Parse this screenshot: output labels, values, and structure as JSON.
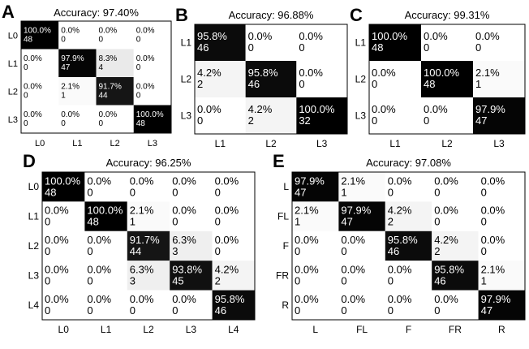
{
  "chart_data": [
    {
      "id": "A",
      "type": "heatmap",
      "panel_label": "A",
      "title": "Accuracy: 97.40%",
      "row_labels": [
        "L0",
        "L1",
        "L2",
        "L3"
      ],
      "col_labels": [
        "L0",
        "L1",
        "L2",
        "L3"
      ],
      "colormap": "white-to-black by row percentage",
      "cells": [
        [
          {
            "pct": "100.0%",
            "n": "48",
            "value": 100.0
          },
          {
            "pct": "0.0%",
            "n": "0",
            "value": 0.0
          },
          {
            "pct": "0.0%",
            "n": "0",
            "value": 0.0
          },
          {
            "pct": "0.0%",
            "n": "0",
            "value": 0.0
          }
        ],
        [
          {
            "pct": "0.0%",
            "n": "0",
            "value": 0.0
          },
          {
            "pct": "97.9%",
            "n": "47",
            "value": 97.9
          },
          {
            "pct": "8.3%",
            "n": "4",
            "value": 8.3
          },
          {
            "pct": "0.0%",
            "n": "0",
            "value": 0.0
          }
        ],
        [
          {
            "pct": "0.0%",
            "n": "0",
            "value": 0.0
          },
          {
            "pct": "2.1%",
            "n": "1",
            "value": 2.1
          },
          {
            "pct": "91.7%",
            "n": "44",
            "value": 91.7
          },
          {
            "pct": "0.0%",
            "n": "0",
            "value": 0.0
          }
        ],
        [
          {
            "pct": "0.0%",
            "n": "0",
            "value": 0.0
          },
          {
            "pct": "0.0%",
            "n": "0",
            "value": 0.0
          },
          {
            "pct": "0.0%",
            "n": "0",
            "value": 0.0
          },
          {
            "pct": "100.0%",
            "n": "48",
            "value": 100.0
          }
        ]
      ]
    },
    {
      "id": "B",
      "type": "heatmap",
      "panel_label": "B",
      "title": "Accuracy: 96.88%",
      "row_labels": [
        "L1",
        "L2",
        "L3"
      ],
      "col_labels": [
        "L1",
        "L2",
        "L3"
      ],
      "colormap": "white-to-black by row percentage",
      "cells": [
        [
          {
            "pct": "95.8%",
            "n": "46",
            "value": 95.8
          },
          {
            "pct": "0.0%",
            "n": "0",
            "value": 0.0
          },
          {
            "pct": "0.0%",
            "n": "0",
            "value": 0.0
          }
        ],
        [
          {
            "pct": "4.2%",
            "n": "2",
            "value": 4.2
          },
          {
            "pct": "95.8%",
            "n": "46",
            "value": 95.8
          },
          {
            "pct": "0.0%",
            "n": "0",
            "value": 0.0
          }
        ],
        [
          {
            "pct": "0.0%",
            "n": "0",
            "value": 0.0
          },
          {
            "pct": "4.2%",
            "n": "2",
            "value": 4.2
          },
          {
            "pct": "100.0%",
            "n": "32",
            "value": 100.0
          }
        ]
      ]
    },
    {
      "id": "C",
      "type": "heatmap",
      "panel_label": "C",
      "title": "Accuracy: 99.31%",
      "row_labels": [
        "L1",
        "L2",
        "L3"
      ],
      "col_labels": [
        "L1",
        "L2",
        "L3"
      ],
      "colormap": "white-to-black by row percentage",
      "cells": [
        [
          {
            "pct": "100.0%",
            "n": "48",
            "value": 100.0
          },
          {
            "pct": "0.0%",
            "n": "0",
            "value": 0.0
          },
          {
            "pct": "0.0%",
            "n": "0",
            "value": 0.0
          }
        ],
        [
          {
            "pct": "0.0%",
            "n": "0",
            "value": 0.0
          },
          {
            "pct": "100.0%",
            "n": "48",
            "value": 100.0
          },
          {
            "pct": "2.1%",
            "n": "1",
            "value": 2.1
          }
        ],
        [
          {
            "pct": "0.0%",
            "n": "0",
            "value": 0.0
          },
          {
            "pct": "0.0%",
            "n": "0",
            "value": 0.0
          },
          {
            "pct": "97.9%",
            "n": "47",
            "value": 97.9
          }
        ]
      ]
    },
    {
      "id": "D",
      "type": "heatmap",
      "panel_label": "D",
      "title": "Accuracy: 96.25%",
      "row_labels": [
        "L0",
        "L1",
        "L2",
        "L3",
        "L4"
      ],
      "col_labels": [
        "L0",
        "L1",
        "L2",
        "L3",
        "L4"
      ],
      "colormap": "white-to-black by row percentage",
      "cells": [
        [
          {
            "pct": "100.0%",
            "n": "48",
            "value": 100.0
          },
          {
            "pct": "0.0%",
            "n": "0",
            "value": 0.0
          },
          {
            "pct": "0.0%",
            "n": "0",
            "value": 0.0
          },
          {
            "pct": "0.0%",
            "n": "0",
            "value": 0.0
          },
          {
            "pct": "0.0%",
            "n": "0",
            "value": 0.0
          }
        ],
        [
          {
            "pct": "0.0%",
            "n": "0",
            "value": 0.0
          },
          {
            "pct": "100.0%",
            "n": "48",
            "value": 100.0
          },
          {
            "pct": "2.1%",
            "n": "1",
            "value": 2.1
          },
          {
            "pct": "0.0%",
            "n": "0",
            "value": 0.0
          },
          {
            "pct": "0.0%",
            "n": "0",
            "value": 0.0
          }
        ],
        [
          {
            "pct": "0.0%",
            "n": "0",
            "value": 0.0
          },
          {
            "pct": "0.0%",
            "n": "0",
            "value": 0.0
          },
          {
            "pct": "91.7%",
            "n": "44",
            "value": 91.7
          },
          {
            "pct": "6.3%",
            "n": "3",
            "value": 6.3
          },
          {
            "pct": "0.0%",
            "n": "0",
            "value": 0.0
          }
        ],
        [
          {
            "pct": "0.0%",
            "n": "0",
            "value": 0.0
          },
          {
            "pct": "0.0%",
            "n": "0",
            "value": 0.0
          },
          {
            "pct": "6.3%",
            "n": "3",
            "value": 6.3
          },
          {
            "pct": "93.8%",
            "n": "45",
            "value": 93.8
          },
          {
            "pct": "4.2%",
            "n": "2",
            "value": 4.2
          }
        ],
        [
          {
            "pct": "0.0%",
            "n": "0",
            "value": 0.0
          },
          {
            "pct": "0.0%",
            "n": "0",
            "value": 0.0
          },
          {
            "pct": "0.0%",
            "n": "0",
            "value": 0.0
          },
          {
            "pct": "0.0%",
            "n": "0",
            "value": 0.0
          },
          {
            "pct": "95.8%",
            "n": "46",
            "value": 95.8
          }
        ]
      ]
    },
    {
      "id": "E",
      "type": "heatmap",
      "panel_label": "E",
      "title": "Accuracy: 97.08%",
      "row_labels": [
        "L",
        "FL",
        "F",
        "FR",
        "R"
      ],
      "col_labels": [
        "L",
        "FL",
        "F",
        "FR",
        "R"
      ],
      "colormap": "white-to-black by row percentage",
      "cells": [
        [
          {
            "pct": "97.9%",
            "n": "47",
            "value": 97.9
          },
          {
            "pct": "2.1%",
            "n": "1",
            "value": 2.1
          },
          {
            "pct": "0.0%",
            "n": "0",
            "value": 0.0
          },
          {
            "pct": "0.0%",
            "n": "0",
            "value": 0.0
          },
          {
            "pct": "0.0%",
            "n": "0",
            "value": 0.0
          }
        ],
        [
          {
            "pct": "2.1%",
            "n": "1",
            "value": 2.1
          },
          {
            "pct": "97.9%",
            "n": "47",
            "value": 97.9
          },
          {
            "pct": "4.2%",
            "n": "2",
            "value": 4.2
          },
          {
            "pct": "0.0%",
            "n": "0",
            "value": 0.0
          },
          {
            "pct": "0.0%",
            "n": "0",
            "value": 0.0
          }
        ],
        [
          {
            "pct": "0.0%",
            "n": "0",
            "value": 0.0
          },
          {
            "pct": "0.0%",
            "n": "0",
            "value": 0.0
          },
          {
            "pct": "95.8%",
            "n": "46",
            "value": 95.8
          },
          {
            "pct": "4.2%",
            "n": "2",
            "value": 4.2
          },
          {
            "pct": "0.0%",
            "n": "0",
            "value": 0.0
          }
        ],
        [
          {
            "pct": "0.0%",
            "n": "0",
            "value": 0.0
          },
          {
            "pct": "0.0%",
            "n": "0",
            "value": 0.0
          },
          {
            "pct": "0.0%",
            "n": "0",
            "value": 0.0
          },
          {
            "pct": "95.8%",
            "n": "46",
            "value": 95.8
          },
          {
            "pct": "2.1%",
            "n": "1",
            "value": 2.1
          }
        ],
        [
          {
            "pct": "0.0%",
            "n": "0",
            "value": 0.0
          },
          {
            "pct": "0.0%",
            "n": "0",
            "value": 0.0
          },
          {
            "pct": "0.0%",
            "n": "0",
            "value": 0.0
          },
          {
            "pct": "0.0%",
            "n": "0",
            "value": 0.0
          },
          {
            "pct": "97.9%",
            "n": "47",
            "value": 97.9
          }
        ]
      ]
    }
  ],
  "colors": {
    "high": "#000000",
    "low": "#ffffff",
    "border": "#000000",
    "text_dark": "#000000",
    "text_light": "#ffffff"
  }
}
